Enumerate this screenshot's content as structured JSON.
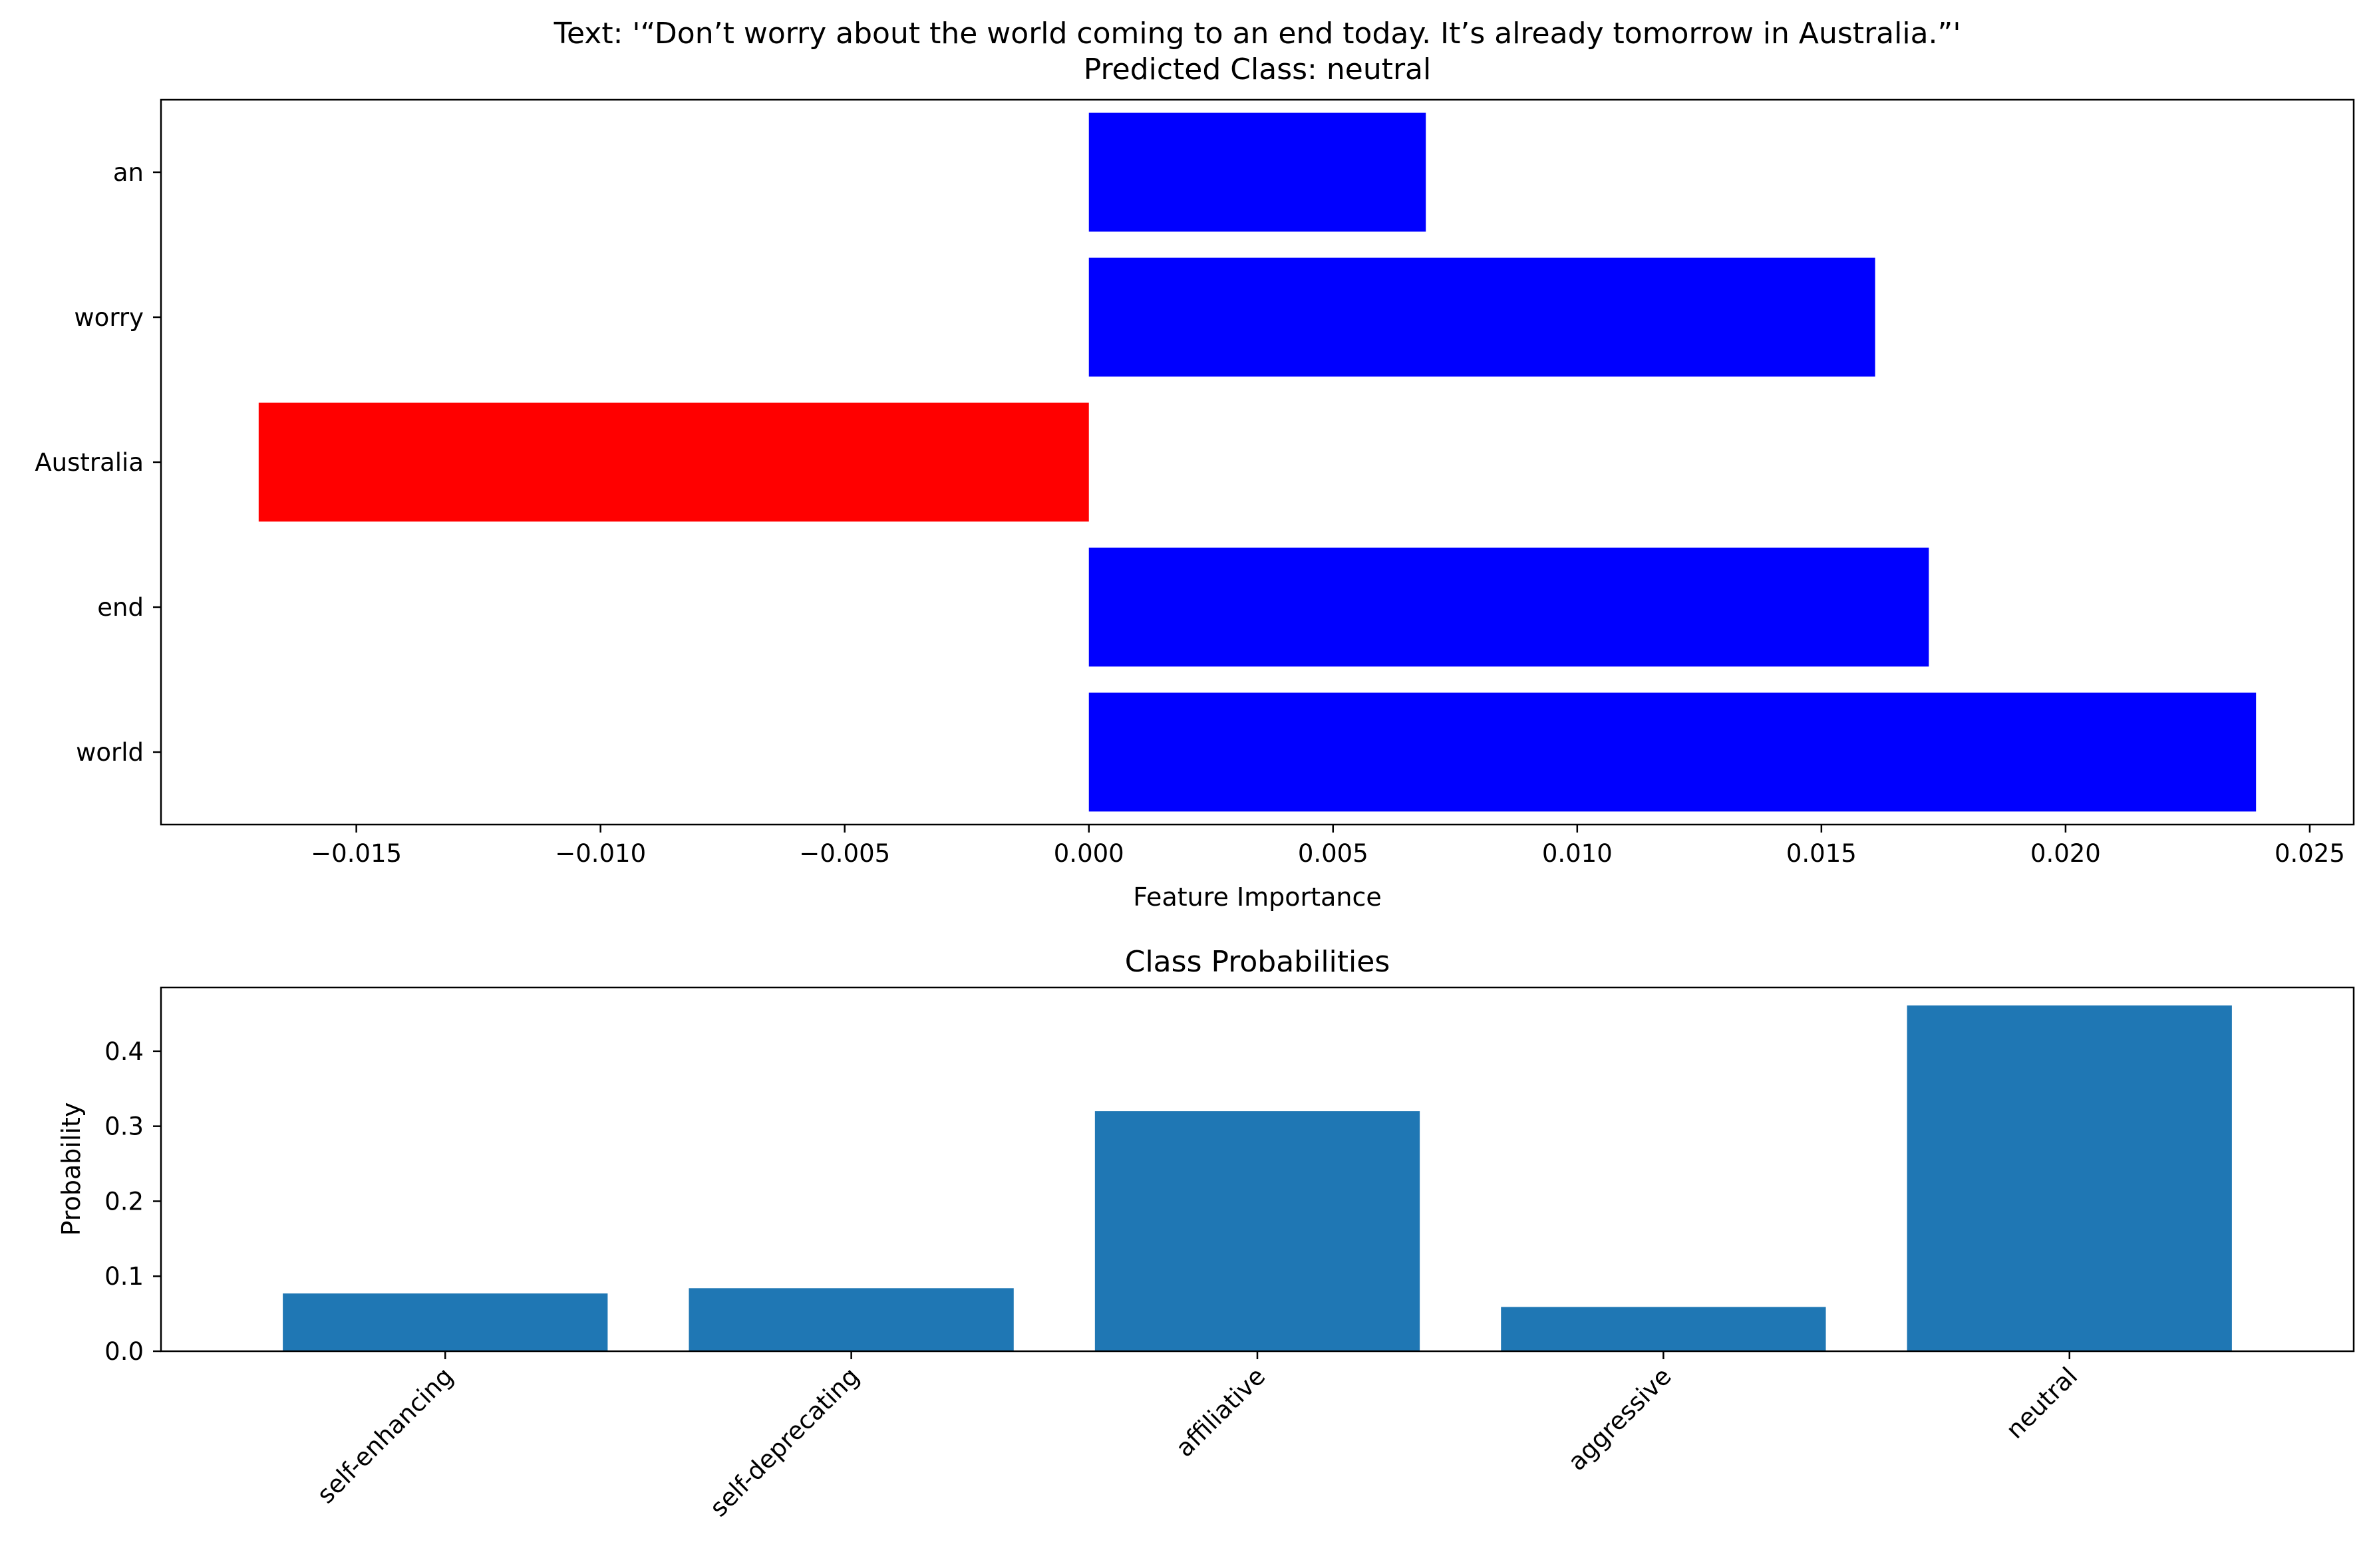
{
  "chart_data": [
    {
      "type": "bar",
      "orientation": "horizontal",
      "title": "Text: '“Don’t worry about the world coming to an end today. It’s already tomorrow in Australia.”'",
      "subtitle": "Predicted Class: neutral",
      "xlabel": "Feature Importance",
      "ylabel": "",
      "categories": [
        "an",
        "worry",
        "Australia",
        "end",
        "world"
      ],
      "values": [
        0.0069,
        0.0161,
        -0.017,
        0.0172,
        0.0239
      ],
      "xlim": [
        -0.019,
        0.0259
      ],
      "xticks": [
        -0.015,
        -0.01,
        -0.005,
        0.0,
        0.005,
        0.01,
        0.015,
        0.02,
        0.025
      ],
      "xtick_labels": [
        "−0.015",
        "−0.010",
        "−0.005",
        "0.000",
        "0.005",
        "0.010",
        "0.015",
        "0.020",
        "0.025"
      ],
      "colors": {
        "positive": "#0000ff",
        "negative": "#ff0000"
      },
      "grid": false
    },
    {
      "type": "bar",
      "title": "Class Probabilities",
      "xlabel": "",
      "ylabel": "Probability",
      "categories": [
        "self-enhancing",
        "self-deprecating",
        "affiliative",
        "aggressive",
        "neutral"
      ],
      "values": [
        0.077,
        0.084,
        0.32,
        0.059,
        0.461
      ],
      "ylim": [
        0,
        0.485
      ],
      "yticks": [
        0.0,
        0.1,
        0.2,
        0.3,
        0.4
      ],
      "ytick_labels": [
        "0.0",
        "0.1",
        "0.2",
        "0.3",
        "0.4"
      ],
      "color": "#1f77b4",
      "grid": false
    }
  ]
}
